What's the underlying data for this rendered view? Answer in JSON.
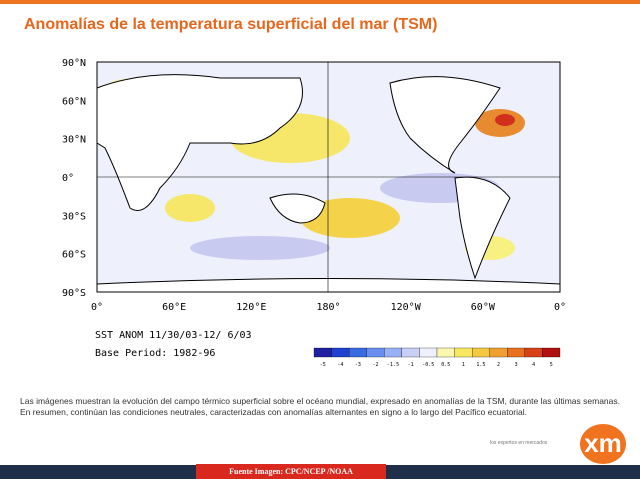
{
  "header": {
    "title": "Anomalías de la temperatura superficial del mar (TSM)"
  },
  "map": {
    "lat_labels": [
      "90°N",
      "60°N",
      "30°N",
      "0°",
      "30°S",
      "60°S",
      "90°S"
    ],
    "lon_labels": [
      "0°",
      "60°E",
      "120°E",
      "180°",
      "120°W",
      "60°W",
      "0°"
    ],
    "caption": [
      "SST ANOM 11/30/03-12/ 6/03",
      "Base Period: 1982-96"
    ],
    "colorbar_labels": [
      "-5",
      "-4",
      "-3",
      "-2",
      "-1.5",
      "-1",
      "-0.5",
      "0.5",
      "1",
      "1.5",
      "2",
      "3",
      "4",
      "5"
    ]
  },
  "body": {
    "paragraph": "Las imágenes muestran la evolución del campo térmico superficial sobre el océano mundial, expresado en anomalías de la TSM, durante las últimas semanas. En resumen, continúan las condiciones neutrales, caracterizadas con anomalías alternantes en signo a lo largo del Pacífico ecuatorial."
  },
  "footer": {
    "source": "Fuente Imagen: CPC/NCEP /NOAA",
    "tagline": "los expertos en mercados",
    "logo": "xm"
  }
}
